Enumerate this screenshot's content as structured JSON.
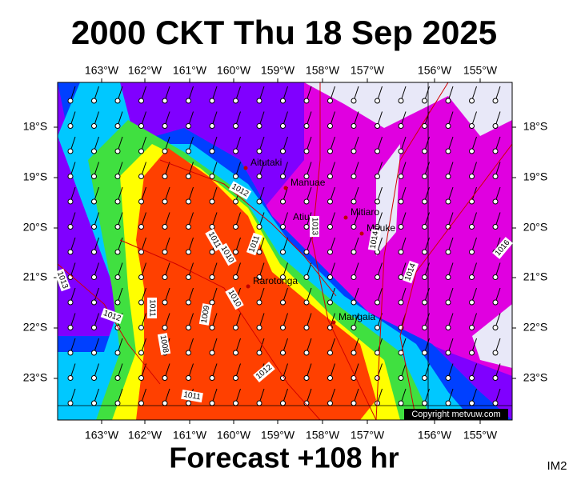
{
  "title": "2000 CKT Thu 18 Sep 2025",
  "footer": "Forecast +108 hr",
  "code": "IM2",
  "copyright": "Copyright metvuw.com",
  "lon_labels": [
    "163°W",
    "162°W",
    "161°W",
    "160°W",
    "159°W",
    "158°W",
    "157°W",
    "156°W",
    "155°W"
  ],
  "lat_labels": [
    "18°S",
    "19°S",
    "20°S",
    "21°S",
    "22°S",
    "23°S"
  ],
  "places": [
    "Aitutaki",
    "Manuae",
    "Atiu",
    "Mitiaro",
    "Mauke",
    "Rarotonga",
    "Mangaia"
  ],
  "isobars": [
    1012,
    1011,
    1010,
    1011,
    1013,
    1014,
    1014,
    1016,
    1013,
    1012,
    1011,
    1009,
    1010,
    1008,
    1012,
    1011
  ]
}
